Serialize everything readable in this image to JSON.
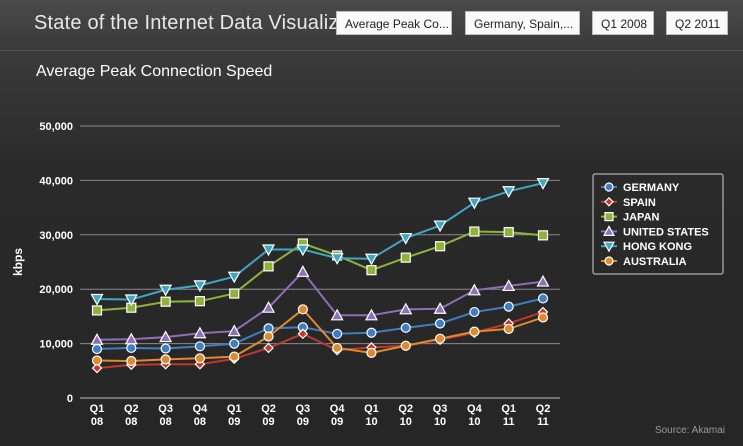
{
  "header": {
    "title": "State of the Internet Data Visualization",
    "metric_label": "Average Peak Co...",
    "country_label": "Germany, Spain,...",
    "from_label": "Q1 2008",
    "to_label": "Q2 2011"
  },
  "source": "Source: Akamai",
  "chart_data": {
    "type": "line",
    "title": "Average Peak Connection Speed",
    "xlabel": "",
    "ylabel": "kbps",
    "ylim": [
      0,
      50000
    ],
    "yticks": [
      "0",
      "10,000",
      "20,000",
      "30,000",
      "40,000",
      "50,000"
    ],
    "grid": true,
    "legend": "right",
    "categories": [
      [
        "Q1",
        "08"
      ],
      [
        "Q2",
        "08"
      ],
      [
        "Q3",
        "08"
      ],
      [
        "Q4",
        "08"
      ],
      [
        "Q1",
        "09"
      ],
      [
        "Q2",
        "09"
      ],
      [
        "Q3",
        "09"
      ],
      [
        "Q4",
        "09"
      ],
      [
        "Q1",
        "10"
      ],
      [
        "Q2",
        "10"
      ],
      [
        "Q3",
        "10"
      ],
      [
        "Q4",
        "10"
      ],
      [
        "Q1",
        "11"
      ],
      [
        "Q2",
        "11"
      ]
    ],
    "series": [
      {
        "name": "GERMANY",
        "color": "#3f7fc1",
        "marker": "circle",
        "values": [
          9000,
          9200,
          9100,
          9500,
          10000,
          12800,
          13000,
          11800,
          12000,
          12900,
          13700,
          15800,
          16800,
          18300
        ]
      },
      {
        "name": "SPAIN",
        "color": "#c0392b",
        "marker": "diamond",
        "values": [
          5500,
          6100,
          6200,
          6200,
          7200,
          9200,
          11800,
          8800,
          9300,
          9600,
          10700,
          12000,
          13700,
          15800
        ]
      },
      {
        "name": "JAPAN",
        "color": "#8db33a",
        "marker": "square",
        "values": [
          16100,
          16600,
          17700,
          17800,
          19200,
          24200,
          28400,
          26200,
          23500,
          25800,
          27900,
          30600,
          30500,
          29900
        ]
      },
      {
        "name": "UNITED STATES",
        "color": "#8e6fb8",
        "marker": "triangle-up",
        "values": [
          10700,
          10800,
          11200,
          11900,
          12300,
          16600,
          23200,
          15200,
          15200,
          16300,
          16400,
          19800,
          20600,
          21400
        ]
      },
      {
        "name": "HONG KONG",
        "color": "#3fa7c4",
        "marker": "triangle-down",
        "values": [
          18200,
          18100,
          19900,
          20700,
          22300,
          27300,
          27300,
          25700,
          25600,
          29400,
          31700,
          35900,
          38000,
          39500
        ]
      },
      {
        "name": "AUSTRALIA",
        "color": "#e08a2e",
        "marker": "circle",
        "values": [
          6900,
          6800,
          7100,
          7300,
          7600,
          11300,
          16300,
          9200,
          8300,
          9600,
          10900,
          12200,
          12700,
          14800
        ]
      }
    ]
  }
}
